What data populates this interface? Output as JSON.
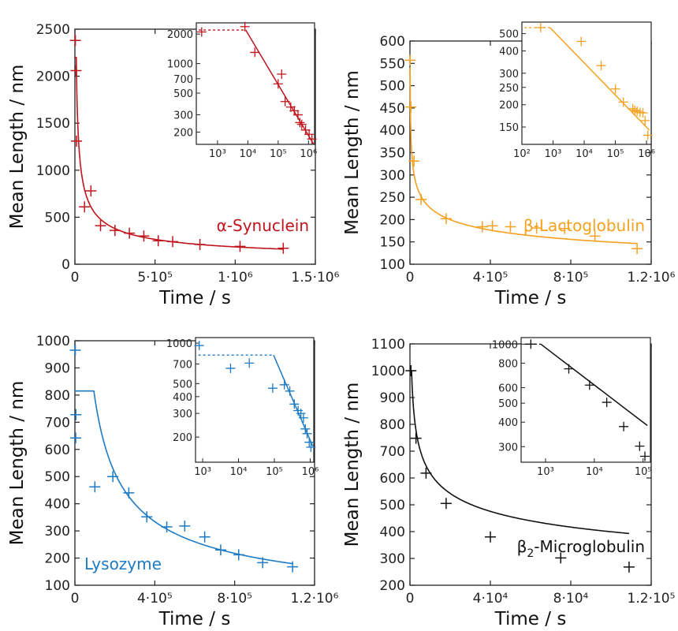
{
  "charts": [
    {
      "id": "asyn",
      "color": "#c0141c",
      "label": {
        "prefix": "α-Synuclein",
        "sub": "",
        "suffix": "",
        "pos": "right"
      },
      "xlabel": "Time / s",
      "ylabel": "Mean Length / nm",
      "xlim": [
        0,
        1500000
      ],
      "ylim": [
        0,
        2500
      ],
      "xticks": [
        {
          "v": 0,
          "t": "0"
        },
        {
          "v": 500000,
          "t": "5·10⁵"
        },
        {
          "v": 1000000,
          "t": "1·10⁶"
        },
        {
          "v": 1500000,
          "t": "1.5·10⁶"
        }
      ],
      "yticks": [
        {
          "v": 0,
          "t": "0"
        },
        {
          "v": 500,
          "t": "500"
        },
        {
          "v": 1000,
          "t": "1000"
        },
        {
          "v": 1500,
          "t": "1500"
        },
        {
          "v": 2000,
          "t": "2000"
        },
        {
          "v": 2500,
          "t": "2500"
        }
      ],
      "points": [
        [
          3000,
          2380
        ],
        [
          7000,
          2060
        ],
        [
          10000,
          1310
        ],
        [
          60000,
          610
        ],
        [
          100000,
          780
        ],
        [
          160000,
          410
        ],
        [
          250000,
          360
        ],
        [
          340000,
          330
        ],
        [
          430000,
          300
        ],
        [
          520000,
          250
        ],
        [
          610000,
          240
        ],
        [
          780000,
          210
        ],
        [
          1030000,
          190
        ],
        [
          1300000,
          170
        ]
      ],
      "fit": {
        "plateau": 2200,
        "t0": 8500,
        "exp": 0.52
      },
      "inset": {
        "xlim_log": [
          2.3,
          6.2
        ],
        "ylim": [
          150,
          2600
        ],
        "xticks": [
          {
            "v": 3,
            "t": "10³"
          },
          {
            "v": 4,
            "t": "10⁴"
          },
          {
            "v": 5,
            "t": "10⁵"
          },
          {
            "v": 6,
            "t": "10⁶"
          }
        ],
        "yticks": [
          {
            "v": 200,
            "t": "200"
          },
          {
            "v": 300,
            "t": "300"
          },
          {
            "v": 500,
            "t": "500"
          },
          {
            "v": 700,
            "t": "700"
          },
          {
            "v": 1000,
            "t": "1000"
          },
          {
            "v": 2000,
            "t": "2000"
          }
        ],
        "points": [
          [
            300,
            2100
          ],
          [
            8000,
            2380
          ],
          [
            17000,
            1300
          ],
          [
            100000,
            620
          ],
          [
            130000,
            780
          ],
          [
            170000,
            410
          ],
          [
            260000,
            360
          ],
          [
            340000,
            330
          ],
          [
            450000,
            300
          ],
          [
            520000,
            250
          ],
          [
            600000,
            240
          ],
          [
            800000,
            210
          ],
          [
            1050000,
            190
          ],
          [
            1300000,
            170
          ]
        ]
      }
    },
    {
      "id": "blg",
      "color": "#f5a01e",
      "label": {
        "prefix": "β-Lactoglobulin",
        "sub": "",
        "suffix": "",
        "pos": "right"
      },
      "xlabel": "Time / s",
      "ylabel": "Mean Length / nm",
      "xlim": [
        0,
        1200000
      ],
      "ylim": [
        100,
        600
      ],
      "xticks": [
        {
          "v": 0,
          "t": "0"
        },
        {
          "v": 400000,
          "t": "4·10⁵"
        },
        {
          "v": 800000,
          "t": "8·10⁵"
        },
        {
          "v": 1200000,
          "t": "1.2·10⁶"
        }
      ],
      "yticks": [
        {
          "v": 100,
          "t": "100"
        },
        {
          "v": 150,
          "t": "150"
        },
        {
          "v": 200,
          "t": "200"
        },
        {
          "v": 250,
          "t": "250"
        },
        {
          "v": 300,
          "t": "300"
        },
        {
          "v": 350,
          "t": "350"
        },
        {
          "v": 400,
          "t": "400"
        },
        {
          "v": 450,
          "t": "450"
        },
        {
          "v": 500,
          "t": "500"
        },
        {
          "v": 550,
          "t": "550"
        },
        {
          "v": 600,
          "t": "600"
        }
      ],
      "points": [
        [
          1000,
          557
        ],
        [
          5000,
          452
        ],
        [
          20000,
          331
        ],
        [
          55000,
          245
        ],
        [
          180000,
          202
        ],
        [
          360000,
          184
        ],
        [
          410000,
          186
        ],
        [
          500000,
          184
        ],
        [
          630000,
          181
        ],
        [
          770000,
          180
        ],
        [
          920000,
          163
        ],
        [
          1130000,
          135
        ]
      ],
      "fit": {
        "plateau": 540,
        "t0": 800,
        "exp": 0.18
      },
      "inset": {
        "xlim_log": [
          2.0,
          6.15
        ],
        "ylim": [
          120,
          580
        ],
        "xticks": [
          {
            "v": 2,
            "t": "10²"
          },
          {
            "v": 3,
            "t": "10³"
          },
          {
            "v": 4,
            "t": "10⁴"
          },
          {
            "v": 5,
            "t": "10⁵"
          },
          {
            "v": 6,
            "t": "10⁶"
          }
        ],
        "yticks": [
          {
            "v": 150,
            "t": "150"
          },
          {
            "v": 200,
            "t": "200"
          },
          {
            "v": 250,
            "t": "250"
          },
          {
            "v": 300,
            "t": "300"
          },
          {
            "v": 400,
            "t": "400"
          },
          {
            "v": 500,
            "t": "500"
          }
        ],
        "points": [
          [
            400,
            540
          ],
          [
            8000,
            452
          ],
          [
            35000,
            331
          ],
          [
            100000,
            245
          ],
          [
            180000,
            207
          ],
          [
            360000,
            190
          ],
          [
            420000,
            186
          ],
          [
            500000,
            184
          ],
          [
            620000,
            181
          ],
          [
            770000,
            180
          ],
          [
            900000,
            163
          ],
          [
            1100000,
            135
          ]
        ]
      }
    },
    {
      "id": "lys",
      "color": "#1d7ac4",
      "label": {
        "prefix": "Lysozyme",
        "sub": "",
        "suffix": "",
        "pos": "left"
      },
      "xlabel": "Time / s",
      "ylabel": "Mean Length / nm",
      "xlim": [
        0,
        1200000
      ],
      "ylim": [
        100,
        1000
      ],
      "xticks": [
        {
          "v": 0,
          "t": "0"
        },
        {
          "v": 400000,
          "t": "4·10⁵"
        },
        {
          "v": 800000,
          "t": "8·10⁵"
        },
        {
          "v": 1200000,
          "t": "1.2·10⁶"
        }
      ],
      "yticks": [
        {
          "v": 100,
          "t": "100"
        },
        {
          "v": 200,
          "t": "200"
        },
        {
          "v": 300,
          "t": "300"
        },
        {
          "v": 400,
          "t": "400"
        },
        {
          "v": 500,
          "t": "500"
        },
        {
          "v": 600,
          "t": "600"
        },
        {
          "v": 700,
          "t": "700"
        },
        {
          "v": 800,
          "t": "800"
        },
        {
          "v": 900,
          "t": "900"
        },
        {
          "v": 1000,
          "t": "1000"
        }
      ],
      "points": [
        [
          2000,
          965
        ],
        [
          5000,
          728
        ],
        [
          4000,
          642
        ],
        [
          100000,
          462
        ],
        [
          190000,
          500
        ],
        [
          270000,
          440
        ],
        [
          360000,
          352
        ],
        [
          460000,
          315
        ],
        [
          550000,
          318
        ],
        [
          650000,
          278
        ],
        [
          730000,
          230
        ],
        [
          820000,
          212
        ],
        [
          940000,
          183
        ],
        [
          1090000,
          168
        ]
      ],
      "fit": {
        "plateau": 815,
        "t0": 95000,
        "exp": 0.62
      },
      "inset": {
        "xlim_log": [
          2.8,
          6.1
        ],
        "ylim": [
          130,
          1100
        ],
        "xticks": [
          {
            "v": 3,
            "t": "10³"
          },
          {
            "v": 4,
            "t": "10⁴"
          },
          {
            "v": 5,
            "t": "10⁵"
          },
          {
            "v": 6,
            "t": "10⁶"
          }
        ],
        "yticks": [
          {
            "v": 200,
            "t": "200"
          },
          {
            "v": 300,
            "t": "300"
          },
          {
            "v": 400,
            "t": "400"
          },
          {
            "v": 500,
            "t": "500"
          },
          {
            "v": 700,
            "t": "700"
          },
          {
            "v": 1000,
            "t": "1000"
          }
        ],
        "points": [
          [
            800,
            960
          ],
          [
            6000,
            650
          ],
          [
            20000,
            710
          ],
          [
            90000,
            462
          ],
          [
            190000,
            490
          ],
          [
            270000,
            440
          ],
          [
            360000,
            352
          ],
          [
            460000,
            315
          ],
          [
            550000,
            300
          ],
          [
            650000,
            278
          ],
          [
            730000,
            230
          ],
          [
            820000,
            212
          ],
          [
            940000,
            183
          ],
          [
            1050000,
            168
          ]
        ]
      }
    },
    {
      "id": "b2m",
      "color": "#111111",
      "label": {
        "prefix": "β",
        "sub": "2",
        "suffix": "-Microglobulin",
        "pos": "right"
      },
      "xlabel": "Time / s",
      "ylabel": "Mean Length / nm",
      "xlim": [
        0,
        120000
      ],
      "ylim": [
        200,
        1100
      ],
      "xticks": [
        {
          "v": 0,
          "t": "0"
        },
        {
          "v": 40000,
          "t": "4·10⁴"
        },
        {
          "v": 80000,
          "t": "8·10⁴"
        },
        {
          "v": 120000,
          "t": "1.2·10⁵"
        }
      ],
      "yticks": [
        {
          "v": 200,
          "t": "200"
        },
        {
          "v": 300,
          "t": "300"
        },
        {
          "v": 400,
          "t": "400"
        },
        {
          "v": 500,
          "t": "500"
        },
        {
          "v": 600,
          "t": "600"
        },
        {
          "v": 700,
          "t": "700"
        },
        {
          "v": 800,
          "t": "800"
        },
        {
          "v": 900,
          "t": "900"
        },
        {
          "v": 1000,
          "t": "1000"
        },
        {
          "v": 1100,
          "t": "1100"
        }
      ],
      "points": [
        [
          500,
          1000
        ],
        [
          3000,
          748
        ],
        [
          8000,
          618
        ],
        [
          18000,
          505
        ],
        [
          40000,
          380
        ],
        [
          75000,
          302
        ],
        [
          109000,
          268
        ]
      ],
      "fit": {
        "plateau": 1000,
        "t0": 800,
        "exp": 0.19
      },
      "inset": {
        "xlim_log": [
          2.5,
          5.15
        ],
        "ylim": [
          250,
          1080
        ],
        "xticks": [
          {
            "v": 3,
            "t": "10³"
          },
          {
            "v": 4,
            "t": "10⁴"
          },
          {
            "v": 5,
            "t": "10⁵"
          }
        ],
        "yticks": [
          {
            "v": 300,
            "t": "300"
          },
          {
            "v": 400,
            "t": "400"
          },
          {
            "v": 500,
            "t": "500"
          },
          {
            "v": 600,
            "t": "600"
          },
          {
            "v": 800,
            "t": "800"
          },
          {
            "v": 1000,
            "t": "1000"
          }
        ],
        "points": [
          [
            500,
            1000
          ],
          [
            3000,
            748
          ],
          [
            8000,
            618
          ],
          [
            18000,
            505
          ],
          [
            40000,
            380
          ],
          [
            85000,
            302
          ],
          [
            109000,
            268
          ]
        ]
      }
    }
  ]
}
